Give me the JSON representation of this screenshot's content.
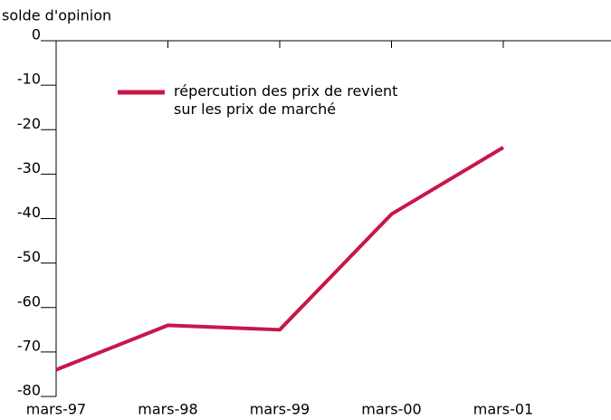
{
  "chart_data": {
    "type": "line",
    "y_label": "solde d'opinion",
    "categories": [
      "mars-97",
      "mars-98",
      "mars-99",
      "mars-00",
      "mars-01"
    ],
    "series": [
      {
        "name": "répercution des prix de revient\nsur les prix de marché",
        "color": "#c8174a",
        "values": [
          -74,
          -64,
          -65,
          -39,
          -24
        ]
      }
    ],
    "ylim": [
      -80,
      0
    ],
    "yticks": [
      0,
      -10,
      -20,
      -30,
      -40,
      -50,
      -60,
      -70,
      -80
    ],
    "legend": "upper left"
  }
}
